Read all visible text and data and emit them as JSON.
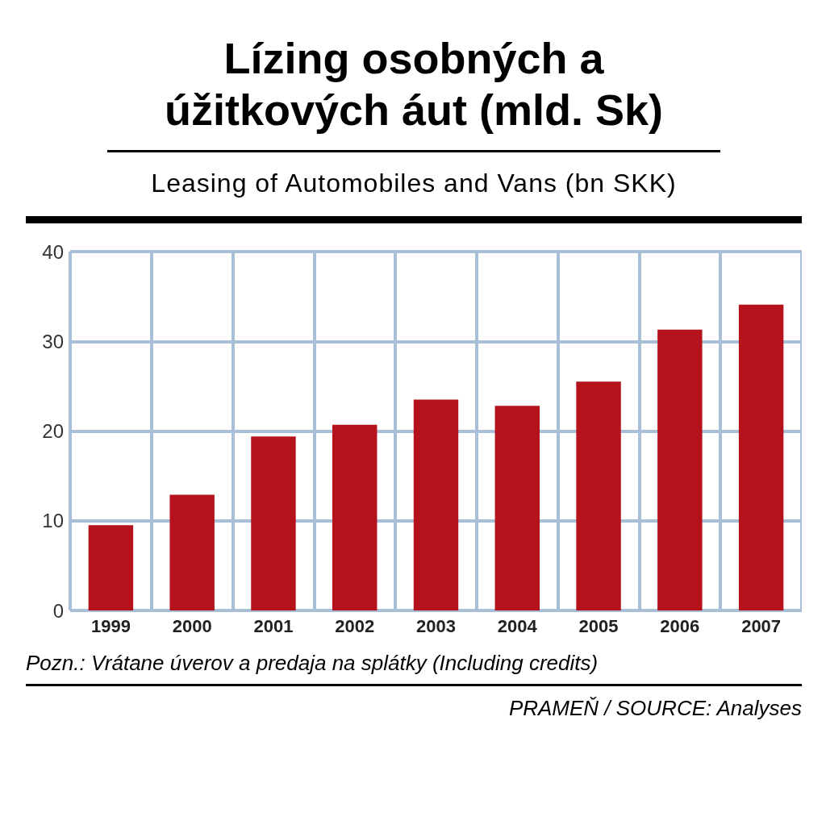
{
  "chart_data": {
    "type": "bar",
    "title": "Lízing osobných a úžitkových áut (mld. Sk)",
    "subtitle": "Leasing of Automobiles and Vans (bn SKK)",
    "categories": [
      "1999",
      "2000",
      "2001",
      "2002",
      "2003",
      "2004",
      "2005",
      "2006",
      "2007"
    ],
    "values": [
      9.5,
      12.9,
      19.4,
      20.7,
      23.5,
      22.8,
      25.5,
      31.3,
      34.1
    ],
    "color": "#b5121b",
    "ylim": [
      0,
      40
    ],
    "yticks": [
      0,
      10,
      20,
      30,
      40
    ],
    "grid": true,
    "annotations": [
      "Pozn.: Vrátane úverov a predaja na splátky (Including credits)",
      "PRAMEŇ / SOURCE: Analyses"
    ]
  }
}
